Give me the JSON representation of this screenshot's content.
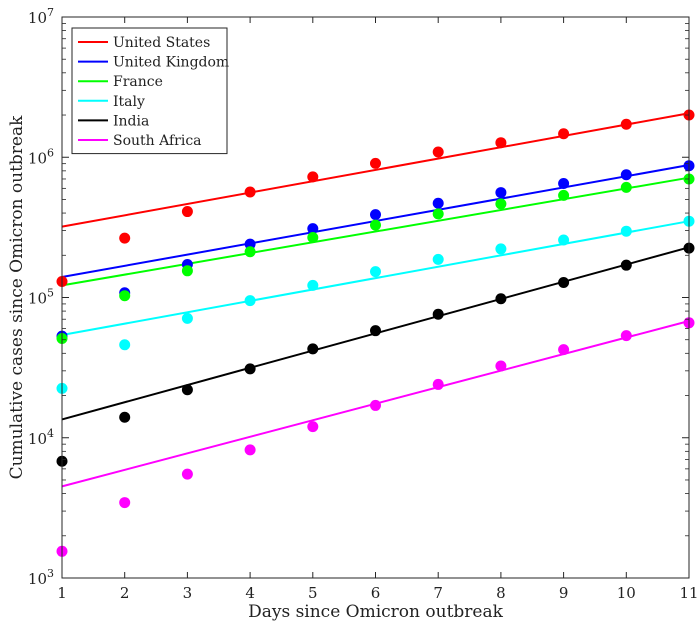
{
  "chart_data": {
    "type": "scatter",
    "xlabel": "Days since Omicron outbreak",
    "ylabel": "Cumulative cases since Omicron outbreak",
    "x": [
      1,
      2,
      3,
      4,
      5,
      6,
      7,
      8,
      9,
      10,
      11
    ],
    "xlim": [
      1,
      11
    ],
    "ylim": [
      1000,
      10000000
    ],
    "yscale": "log",
    "x_ticks": [
      "1",
      "2",
      "3",
      "4",
      "5",
      "6",
      "7",
      "8",
      "9",
      "10",
      "11"
    ],
    "y_ticks": [
      {
        "value": 1000,
        "base": "10",
        "exp": "3"
      },
      {
        "value": 10000,
        "base": "10",
        "exp": "4"
      },
      {
        "value": 100000,
        "base": "10",
        "exp": "5"
      },
      {
        "value": 1000000,
        "base": "10",
        "exp": "6"
      },
      {
        "value": 10000000,
        "base": "10",
        "exp": "7"
      }
    ],
    "legend_position": "top-left",
    "grid": false,
    "series": [
      {
        "name": "United States",
        "color": "#ff0000",
        "values": [
          130000,
          265000,
          410000,
          565000,
          725000,
          905000,
          1090000,
          1270000,
          1470000,
          1720000,
          2000000
        ],
        "fit": [
          320000,
          2060000
        ]
      },
      {
        "name": "United Kingdom",
        "color": "#0000ff",
        "values": [
          53000,
          108000,
          172000,
          240000,
          310000,
          390000,
          470000,
          560000,
          650000,
          750000,
          870000
        ],
        "fit": [
          140000,
          880000
        ]
      },
      {
        "name": "France",
        "color": "#00ff00",
        "values": [
          51000,
          103000,
          155000,
          212000,
          268000,
          328000,
          395000,
          465000,
          535000,
          610000,
          700000
        ],
        "fit": [
          122000,
          715000
        ]
      },
      {
        "name": "Italy",
        "color": "#00ffff",
        "values": [
          22500,
          46000,
          71000,
          95000,
          122000,
          153000,
          187000,
          222000,
          257000,
          297000,
          350000
        ],
        "fit": [
          54000,
          350000
        ]
      },
      {
        "name": "India",
        "color": "#000000",
        "values": [
          6800,
          14000,
          22000,
          31000,
          43000,
          58000,
          76000,
          98000,
          128000,
          170000,
          225000
        ],
        "fit": [
          13500,
          228000
        ]
      },
      {
        "name": "South Africa",
        "color": "#ff00ff",
        "values": [
          1550,
          3450,
          5500,
          8200,
          12000,
          17000,
          24000,
          32500,
          42500,
          53500,
          66000
        ],
        "fit": [
          4500,
          68000
        ]
      }
    ]
  }
}
